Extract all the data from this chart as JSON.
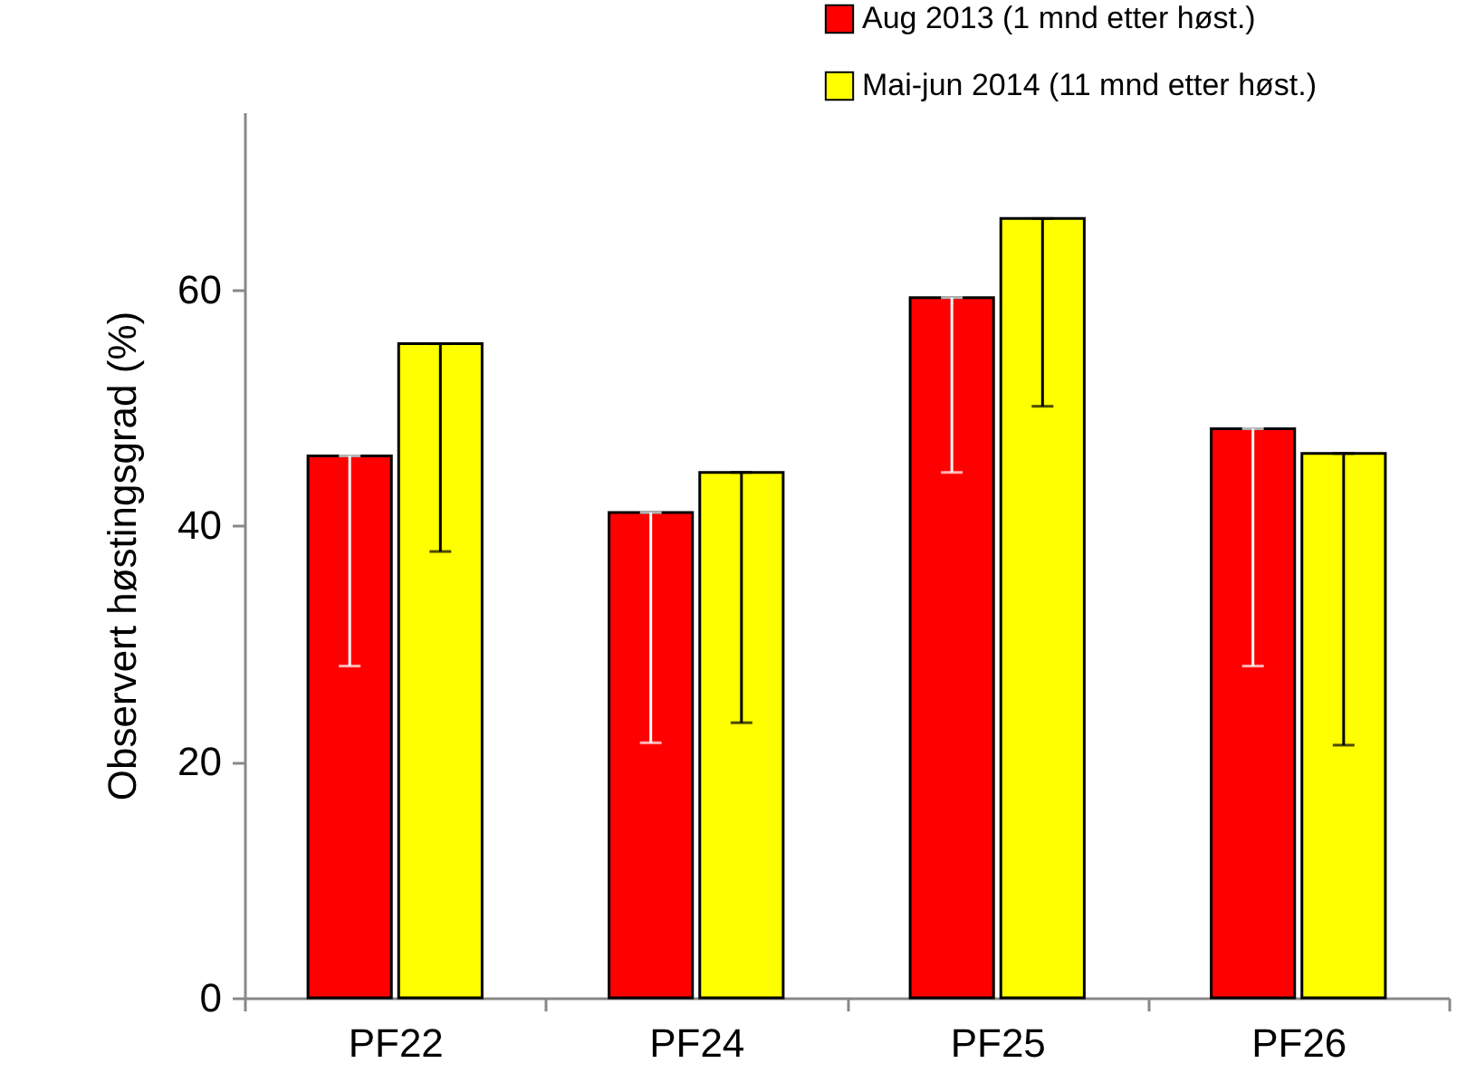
{
  "chart_data": {
    "type": "bar",
    "ylabel": "Observert høstingsgrad  (%)",
    "categories": [
      "PF22",
      "PF24",
      "PF25",
      "PF26"
    ],
    "series": [
      {
        "name": "Aug 2013 (1 mnd etter høst.)",
        "color": "#ff0000",
        "values": [
          45.9,
          41.1,
          59.3,
          48.2
        ],
        "errors": [
          [
            28.1,
            45.9
          ],
          [
            21.6,
            41.1
          ],
          [
            44.5,
            59.3
          ],
          [
            28.1,
            48.2
          ]
        ]
      },
      {
        "name": "Mai-jun 2014 (11 mnd etter høst.)",
        "color": "#ffff00",
        "values": [
          55.4,
          44.5,
          66.0,
          46.1
        ],
        "errors": [
          [
            37.8,
            55.4
          ],
          [
            23.3,
            44.5
          ],
          [
            50.1,
            66.0
          ],
          [
            21.4,
            46.1
          ]
        ]
      }
    ],
    "ylim": [
      0,
      75
    ],
    "yticks": [
      0,
      20,
      40,
      60
    ],
    "grid": false,
    "legend": "top right"
  }
}
